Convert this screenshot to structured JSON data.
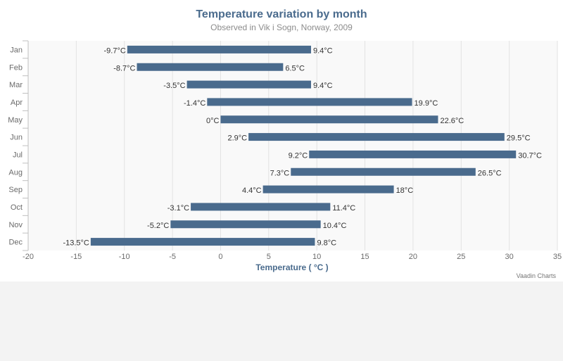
{
  "chart_data": {
    "type": "columnrange",
    "orientation": "horizontal",
    "title": "Temperature variation by month",
    "subtitle": "Observed in Vik i Sogn, Norway, 2009",
    "xlabel": "Temperature ( °C )",
    "categories": [
      "Jan",
      "Feb",
      "Mar",
      "Apr",
      "May",
      "Jun",
      "Jul",
      "Aug",
      "Sep",
      "Oct",
      "Nov",
      "Dec"
    ],
    "low": [
      -9.7,
      -8.7,
      -3.5,
      -1.4,
      0,
      2.9,
      9.2,
      7.3,
      4.4,
      -3.1,
      -5.2,
      -13.5
    ],
    "high": [
      9.4,
      6.5,
      9.4,
      19.9,
      22.6,
      29.5,
      30.7,
      26.5,
      18,
      11.4,
      10.4,
      9.8
    ],
    "low_labels": [
      "-9.7°C",
      "-8.7°C",
      "-3.5°C",
      "-1.4°C",
      "0°C",
      "2.9°C",
      "9.2°C",
      "7.3°C",
      "4.4°C",
      "-3.1°C",
      "-5.2°C",
      "-13.5°C"
    ],
    "high_labels": [
      "9.4°C",
      "6.5°C",
      "9.4°C",
      "19.9°C",
      "22.6°C",
      "29.5°C",
      "30.7°C",
      "26.5°C",
      "18°C",
      "11.4°C",
      "10.4°C",
      "9.8°C"
    ],
    "xlim": [
      -20,
      35
    ],
    "xticks": [
      -20,
      -15,
      -10,
      -5,
      0,
      5,
      10,
      15,
      20,
      25,
      30,
      35
    ],
    "grid": true,
    "legend": false,
    "bar_color": "#4a6b8d",
    "plot_band_color": "#f9f9f9"
  },
  "credits": "Vaadin Charts"
}
